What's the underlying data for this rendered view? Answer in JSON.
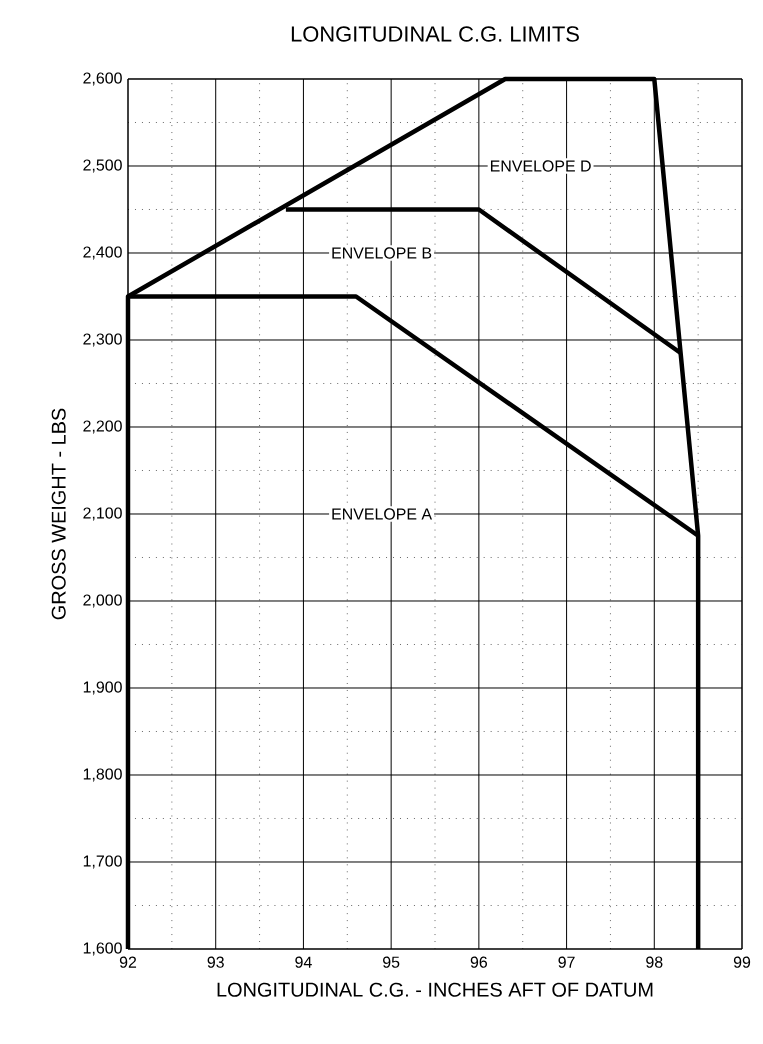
{
  "chart_data": {
    "type": "line",
    "title": "LONGITUDINAL C.G. LIMITS",
    "xlabel": "LONGITUDINAL C.G. - INCHES AFT OF DATUM",
    "ylabel": "GROSS WEIGHT - LBS",
    "series": [
      {
        "color": "#000000",
        "x": [
          92,
          92,
          96.3,
          98,
          98.5,
          98.5
        ],
        "values": [
          1600,
          2350,
          2600,
          2600,
          2075,
          1600
        ]
      },
      {
        "color": "#000000",
        "x": [
          92,
          94.6,
          98.5
        ],
        "values": [
          2350,
          2350,
          2075
        ]
      },
      {
        "color": "#000000",
        "x": [
          93.8,
          96,
          98.3
        ],
        "values": [
          2450,
          2450,
          2285
        ]
      }
    ],
    "annotations": [
      "ENVELOPE D",
      "ENVELOPE B",
      "ENVELOPE A"
    ],
    "xlim": [
      92,
      99
    ],
    "ylim": [
      1600,
      2600
    ],
    "xticks": [
      92,
      93,
      94,
      95,
      96,
      97,
      98,
      99
    ],
    "yticks": [
      {
        "value": 1600,
        "label": "1,600"
      },
      {
        "value": 1700,
        "label": "1,700"
      },
      {
        "value": 1800,
        "label": "1,800"
      },
      {
        "value": 1900,
        "label": "1,900"
      },
      {
        "value": 2000,
        "label": "2,000"
      },
      {
        "value": 2100,
        "label": "2,100"
      },
      {
        "value": 2200,
        "label": "2,200"
      },
      {
        "value": 2300,
        "label": "2,300"
      },
      {
        "value": 2400,
        "label": "2,400"
      },
      {
        "value": 2500,
        "label": "2,500"
      },
      {
        "value": 2600,
        "label": "2,600"
      }
    ],
    "grid": true,
    "marker": "none",
    "line_style": "solid"
  }
}
